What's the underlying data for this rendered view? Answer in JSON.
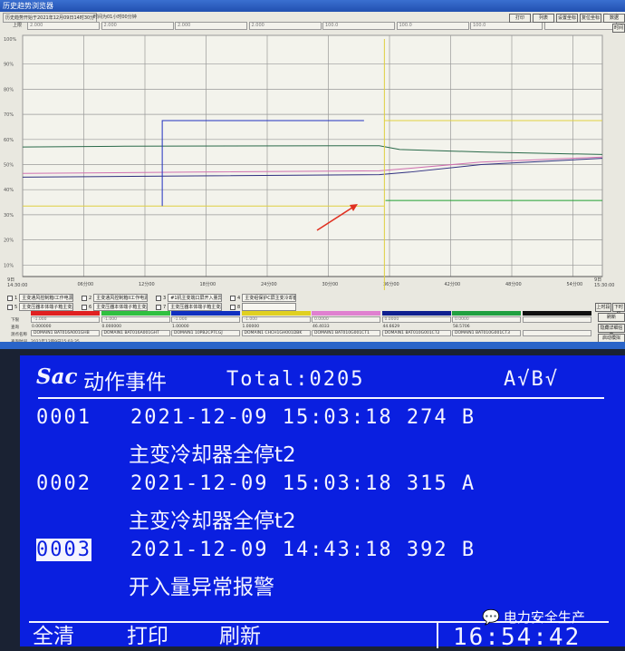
{
  "window": {
    "title": "历史趋势浏览器",
    "start_info": "历史趋势开始于2021年12月09日14时30分",
    "duration_info": "时间为01小时00分钟",
    "upper_label": "上限",
    "upper_values": [
      "2.000",
      "2.000",
      "2.000",
      "2.000",
      "100.0",
      "100.0",
      "100.0",
      ""
    ],
    "buttons": [
      "打印",
      "列表",
      "设置坐标",
      "复位坐标",
      "数据"
    ],
    "time_button": "时间",
    "side_buttons": [
      "上时段",
      "下时段",
      "刷新",
      "隐藏详细信息",
      "启动模拟"
    ]
  },
  "chart_data": {
    "type": "line",
    "xlim_minutes": [
      0,
      60
    ],
    "ylim": [
      0,
      100
    ],
    "yticks": [
      "100%",
      "90%",
      "80%",
      "70%",
      "60%",
      "50%",
      "40%",
      "30%",
      "20%",
      "10%"
    ],
    "xticks": [
      "06分00",
      "12分00",
      "18分00",
      "24分00",
      "30分00",
      "36分00",
      "42分00",
      "48分00",
      "54分00"
    ],
    "x_start_label": [
      "9日",
      "14:30:00"
    ],
    "x_end_label": [
      "9日",
      "15:30:00"
    ],
    "grid": true,
    "series": [
      {
        "color": "#2a6a4a",
        "points": [
          [
            0,
            57
          ],
          [
            10,
            57.3
          ],
          [
            35,
            57.5
          ],
          [
            37,
            56
          ],
          [
            45,
            55
          ],
          [
            60,
            54
          ]
        ]
      },
      {
        "color": "#d070b0",
        "points": [
          [
            0,
            46.5
          ],
          [
            17,
            47
          ],
          [
            35,
            47.5
          ],
          [
            38,
            48.5
          ],
          [
            45,
            51
          ],
          [
            60,
            53
          ]
        ]
      },
      {
        "color": "#303080",
        "points": [
          [
            0,
            45
          ],
          [
            17,
            45.5
          ],
          [
            35,
            46
          ],
          [
            38,
            47
          ],
          [
            45,
            50
          ],
          [
            60,
            52.5
          ]
        ]
      },
      {
        "color": "#e0d040",
        "points": [
          [
            0,
            33.5
          ],
          [
            35.5,
            33.5
          ],
          [
            35.5,
            0
          ],
          [
            35.5,
            100
          ],
          [
            35.5,
            67.5
          ],
          [
            60,
            67.5
          ]
        ]
      },
      {
        "color": "#2030c0",
        "points": [
          [
            13.7,
            33.5
          ],
          [
            13.7,
            67.5
          ],
          [
            33.5,
            67.5
          ]
        ]
      },
      {
        "color": "#20a030",
        "points": [
          [
            35.6,
            35.7
          ],
          [
            60,
            35.7
          ]
        ]
      }
    ]
  },
  "legend": {
    "items": [
      {
        "num": "1",
        "label": "主变通风控制箱I工作电源故"
      },
      {
        "num": "2",
        "label": "主变通风控制箱II工作电源故"
      },
      {
        "num": "3",
        "label": "#1机主变端口屏开入量异常"
      },
      {
        "num": "4",
        "label": "主变组保护C屏主变冷却器"
      },
      {
        "num": "5",
        "label": "主变压器本体端子箱主变压"
      },
      {
        "num": "6",
        "label": "主变压器本体端子箱主变压"
      },
      {
        "num": "7",
        "label": "主变压器本体端子箱主变压"
      },
      {
        "num": "8",
        "label": ""
      }
    ]
  },
  "table": {
    "row_labels": [
      "下限",
      "查询",
      "测点名称",
      "查询时间"
    ],
    "colors": [
      "#e02020",
      "#30c040",
      "#1030c0",
      "#e0d020",
      "#e080d0",
      "#102090",
      "#20a040",
      "#111111"
    ],
    "lower": [
      "-1.000",
      "-1.000",
      "-1.000",
      "-1.000",
      "0.0000",
      "0.0000",
      "0.0000",
      ""
    ],
    "query": [
      "0.000000",
      "0.000000",
      "1.00000",
      "1.00000",
      "46.4033",
      "44.6629",
      "58.5706",
      ""
    ],
    "names": [
      "DOMAIN1 BAT016A001GHB",
      "DOMAIN1 BAT016A001GHT",
      "DOMAIN1 10PB2CPTCGJ",
      "DOMAIN1 CHCH1GH001DBK",
      "DOMAIN1 BAT010G001CT1",
      "DOMAIN1 BAT010G001CT2",
      "DOMAIN1 BAT010G001CT3",
      ""
    ],
    "query_time": "2021年12月9日15:03:35"
  },
  "lcd": {
    "logo": "Sac",
    "title": "动作事件",
    "total": "Total:0205",
    "status": "A√B√",
    "events": [
      {
        "no": "0001",
        "line": "2021-12-09 15:03:18 274 B",
        "desc": "主变冷却器全停t2"
      },
      {
        "no": "0002",
        "line": "2021-12-09 15:03:18 315 A",
        "desc": "主变冷却器全停t2"
      },
      {
        "no": "0003",
        "line": "2021-12-09 14:43:18 392 B",
        "desc": "开入量异常报警"
      }
    ],
    "menu": [
      "全清",
      "打印",
      "刷新"
    ],
    "clock": "16:54:42"
  },
  "watermark": "电力安全生产"
}
